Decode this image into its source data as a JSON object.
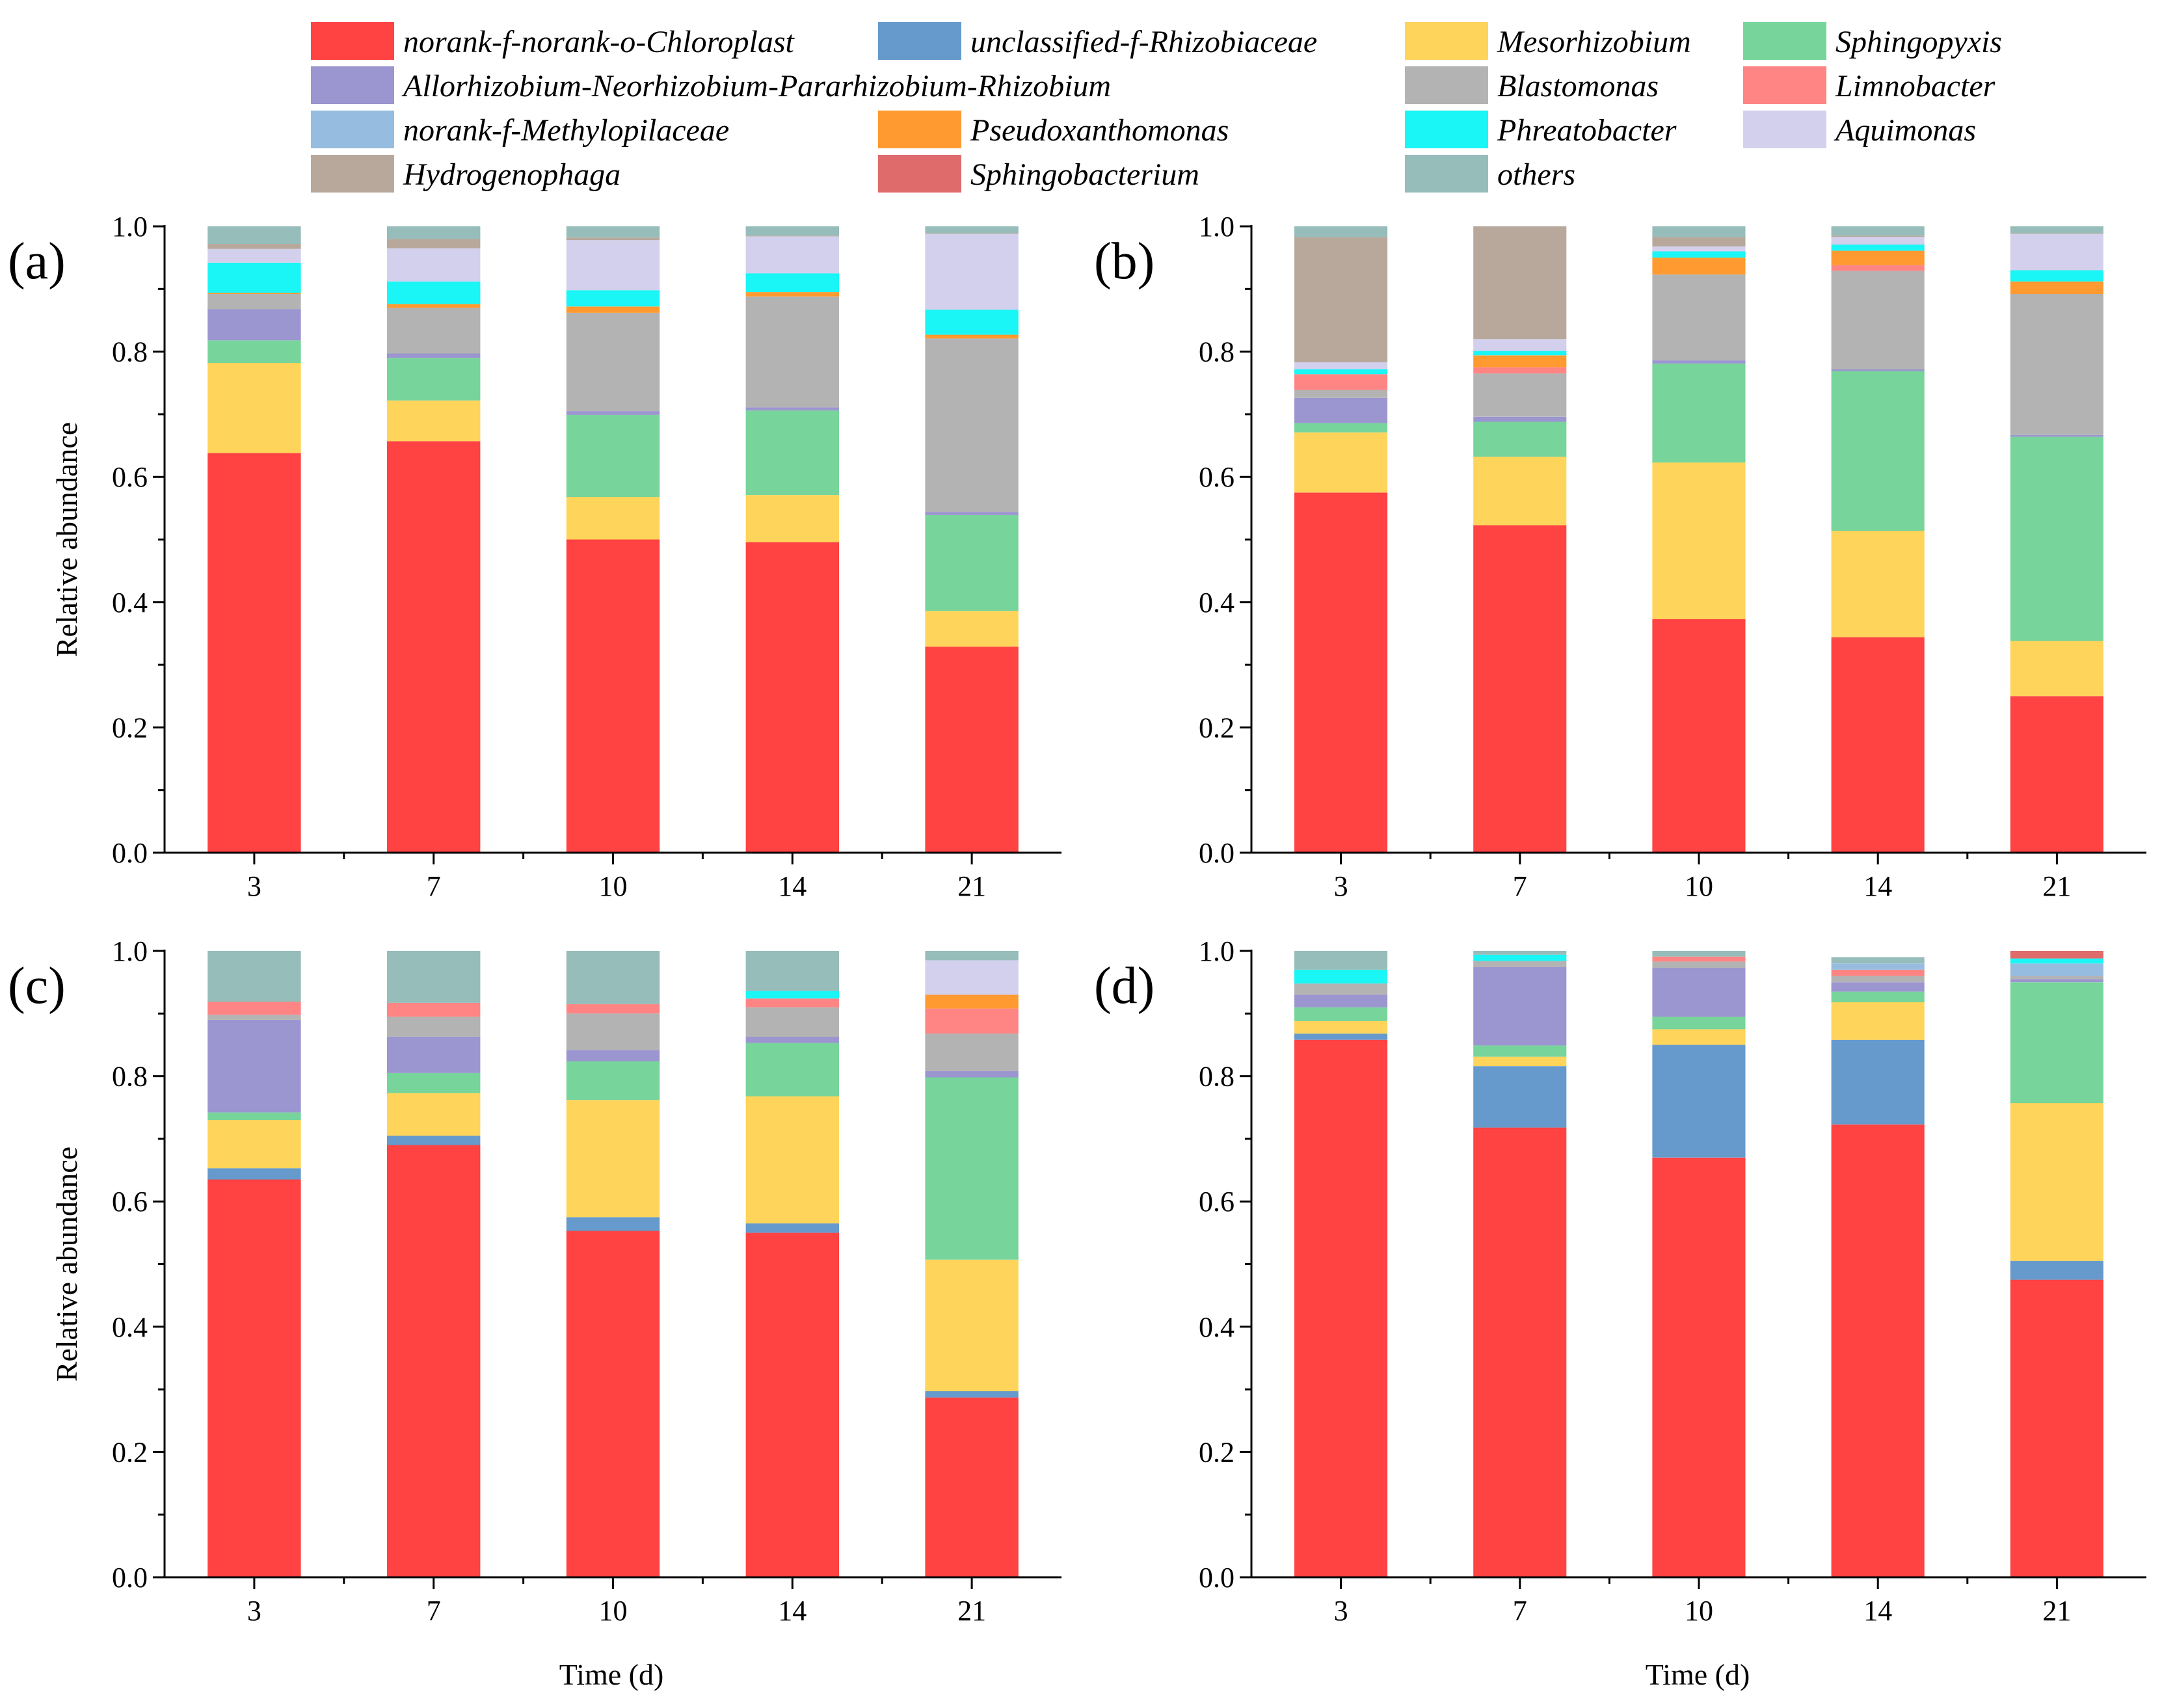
{
  "chart_data": {
    "type": "bar",
    "stacked": true,
    "xlabel": "Time (d)",
    "ylabel": "Relative abundance",
    "ylim": [
      0,
      1
    ],
    "yticks": [
      "0.0",
      "0.2",
      "0.4",
      "0.6",
      "0.8",
      "1.0"
    ],
    "categories": [
      "3",
      "7",
      "10",
      "14",
      "21"
    ],
    "legend": [
      {
        "name": "norank-f-norank-o-Chloroplast",
        "color": "#FF4242"
      },
      {
        "name": "unclassified-f-Rhizobiaceae",
        "color": "#6699CC"
      },
      {
        "name": "Mesorhizobium",
        "color": "#FFD45A"
      },
      {
        "name": "Sphingopyxis",
        "color": "#77D49A"
      },
      {
        "name": "Allorhizobium-Neorhizobium-Pararhizobium-Rhizobium",
        "color": "#9B95D0"
      },
      {
        "name": "Blastomonas",
        "color": "#B3B3B3"
      },
      {
        "name": "Limnobacter",
        "color": "#FF8585"
      },
      {
        "name": "norank-f-Methylopilaceae",
        "color": "#96BDE0"
      },
      {
        "name": "Pseudoxanthomonas",
        "color": "#FF9A30"
      },
      {
        "name": "Phreatobacter",
        "color": "#1AF5F5"
      },
      {
        "name": "Aquimonas",
        "color": "#D2D0EC"
      },
      {
        "name": "Hydrogenophaga",
        "color": "#B8A89C"
      },
      {
        "name": "Sphingobacterium",
        "color": "#DF6B6B"
      },
      {
        "name": "others",
        "color": "#96BDBA"
      }
    ],
    "panels": [
      {
        "label": "(a)",
        "series": [
          [
            0.638,
            0.657,
            0.5,
            0.496,
            0.329
          ],
          [
            0.0,
            0.0,
            0.0,
            0.0,
            0.0
          ],
          [
            0.144,
            0.065,
            0.068,
            0.075,
            0.057
          ],
          [
            0.036,
            0.068,
            0.131,
            0.135,
            0.153
          ],
          [
            0.05,
            0.007,
            0.006,
            0.005,
            0.005
          ],
          [
            0.024,
            0.073,
            0.157,
            0.177,
            0.277
          ],
          [
            0.0,
            0.0,
            0.0,
            0.0,
            0.0
          ],
          [
            0.0,
            0.0,
            0.0,
            0.0,
            0.0
          ],
          [
            0.002,
            0.006,
            0.01,
            0.007,
            0.006
          ],
          [
            0.048,
            0.036,
            0.026,
            0.03,
            0.04
          ],
          [
            0.022,
            0.053,
            0.08,
            0.059,
            0.121
          ],
          [
            0.008,
            0.015,
            0.004,
            0.001,
            0.001
          ],
          [
            0.0,
            0.0,
            0.0,
            0.0,
            0.0
          ],
          [
            0.028,
            0.02,
            0.018,
            0.015,
            0.011
          ]
        ]
      },
      {
        "label": "(b)",
        "series": [
          [
            0.575,
            0.523,
            0.373,
            0.344,
            0.25
          ],
          [
            0.0,
            0.0,
            0.0,
            0.0,
            0.0
          ],
          [
            0.096,
            0.109,
            0.25,
            0.17,
            0.088
          ],
          [
            0.015,
            0.056,
            0.158,
            0.255,
            0.326
          ],
          [
            0.04,
            0.008,
            0.005,
            0.003,
            0.003
          ],
          [
            0.013,
            0.069,
            0.137,
            0.157,
            0.225
          ],
          [
            0.025,
            0.01,
            0.0,
            0.009,
            0.0
          ],
          [
            0.0,
            0.0,
            0.0,
            0.0,
            0.0
          ],
          [
            0.0,
            0.019,
            0.027,
            0.023,
            0.02
          ],
          [
            0.008,
            0.007,
            0.01,
            0.01,
            0.018
          ],
          [
            0.011,
            0.019,
            0.008,
            0.012,
            0.058
          ],
          [
            0.2,
            0.18,
            0.015,
            0.002,
            0.001
          ],
          [
            0.0,
            0.0,
            0.0,
            0.0,
            0.0
          ],
          [
            0.017,
            0.0,
            0.017,
            0.015,
            0.011
          ]
        ]
      },
      {
        "label": "(c)",
        "series": [
          [
            0.635,
            0.69,
            0.553,
            0.55,
            0.287
          ],
          [
            0.018,
            0.015,
            0.022,
            0.015,
            0.01
          ],
          [
            0.077,
            0.068,
            0.187,
            0.203,
            0.21
          ],
          [
            0.012,
            0.032,
            0.062,
            0.085,
            0.291
          ],
          [
            0.148,
            0.058,
            0.018,
            0.01,
            0.01
          ],
          [
            0.008,
            0.032,
            0.058,
            0.047,
            0.06
          ],
          [
            0.021,
            0.022,
            0.015,
            0.014,
            0.04
          ],
          [
            0.0,
            0.0,
            0.0,
            0.0,
            0.0
          ],
          [
            0.0,
            0.0,
            0.0,
            0.0,
            0.022
          ],
          [
            0.0,
            0.0,
            0.0,
            0.012,
            0.0
          ],
          [
            0.0,
            0.0,
            0.0,
            0.0,
            0.055
          ],
          [
            0.0,
            0.0,
            0.0,
            0.0,
            0.0
          ],
          [
            0.0,
            0.0,
            0.0,
            0.0,
            0.0
          ],
          [
            0.081,
            0.083,
            0.085,
            0.064,
            0.015
          ]
        ]
      },
      {
        "label": "(d)",
        "series": [
          [
            0.858,
            0.718,
            0.67,
            0.723,
            0.475
          ],
          [
            0.01,
            0.098,
            0.18,
            0.135,
            0.03
          ],
          [
            0.02,
            0.015,
            0.025,
            0.06,
            0.252
          ],
          [
            0.022,
            0.018,
            0.02,
            0.017,
            0.193
          ],
          [
            0.02,
            0.125,
            0.078,
            0.015,
            0.005
          ],
          [
            0.018,
            0.01,
            0.01,
            0.01,
            0.005
          ],
          [
            0.0,
            0.0,
            0.008,
            0.01,
            0.0
          ],
          [
            0.0,
            0.0,
            0.0,
            0.01,
            0.02
          ],
          [
            0.0,
            0.0,
            0.0,
            0.0,
            0.0
          ],
          [
            0.022,
            0.01,
            0.0,
            0.0,
            0.008
          ],
          [
            0.0,
            0.0,
            0.0,
            0.0,
            0.0
          ],
          [
            0.0,
            0.0,
            0.0,
            0.0,
            0.0
          ],
          [
            0.0,
            0.0,
            0.0,
            0.0,
            0.012
          ],
          [
            0.03,
            0.006,
            0.009,
            0.01,
            0.0
          ]
        ]
      }
    ]
  }
}
